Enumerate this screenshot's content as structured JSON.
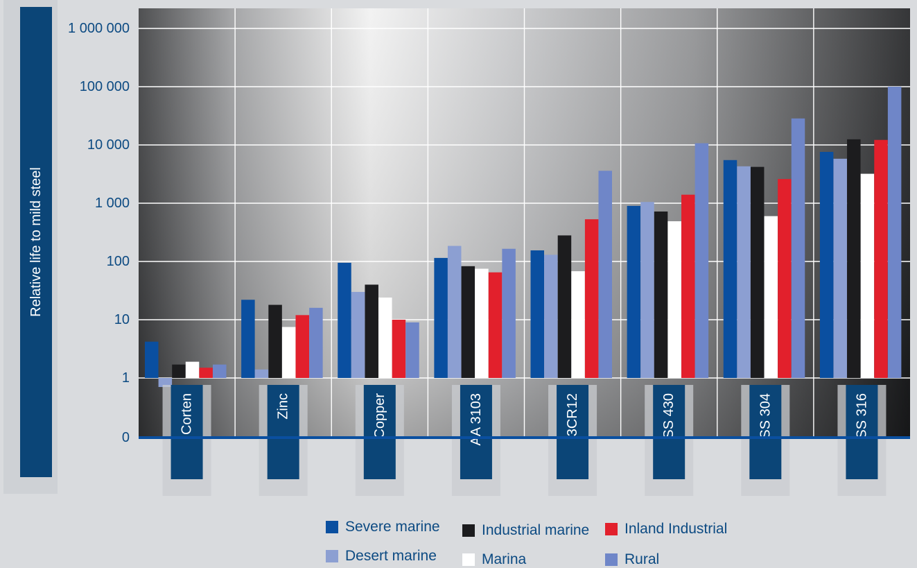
{
  "chart_data": {
    "type": "bar",
    "scale": "log",
    "ylabel": "Relative life to mild steel",
    "y_ticks": [
      {
        "value": 0,
        "label": "0"
      },
      {
        "value": 1,
        "label": "1"
      },
      {
        "value": 10,
        "label": "10"
      },
      {
        "value": 100,
        "label": "100"
      },
      {
        "value": 1000,
        "label": "1 000"
      },
      {
        "value": 10000,
        "label": "10 000"
      },
      {
        "value": 100000,
        "label": "100 000"
      },
      {
        "value": 1000000,
        "label": "1 000 000"
      }
    ],
    "grid": true,
    "legend_position": "bottom",
    "categories": [
      "Corten",
      "Zinc",
      "Copper",
      "AA 3103",
      "3CR12",
      "SS 430",
      "SS 304",
      "SS 316"
    ],
    "series": [
      {
        "name": "Severe marine",
        "color": "#0a4fa0",
        "values": [
          4.2,
          22,
          95,
          115,
          155,
          900,
          5500,
          7600
        ]
      },
      {
        "name": "Desert marine",
        "color": "#8c9fd2",
        "values": [
          0.7,
          1.4,
          30,
          185,
          130,
          1050,
          4300,
          5800
        ]
      },
      {
        "name": "Industrial marine",
        "color": "#1c1c1e",
        "values": [
          1.7,
          18,
          40,
          83,
          280,
          720,
          4200,
          12500
        ]
      },
      {
        "name": "Marina",
        "color": "#ffffff",
        "values": [
          1.9,
          7.5,
          24,
          75,
          68,
          490,
          600,
          3200
        ]
      },
      {
        "name": "Inland Industrial",
        "color": "#e2202c",
        "values": [
          1.5,
          12,
          10,
          65,
          530,
          1400,
          2600,
          12200
        ]
      },
      {
        "name": "Rural",
        "color": "#6f86c8",
        "values": [
          1.7,
          16,
          9,
          165,
          3600,
          10700,
          28500,
          100000
        ]
      }
    ]
  },
  "legend": {
    "items": [
      {
        "label": "Severe marine",
        "color": "#0a4fa0"
      },
      {
        "label": "Desert marine",
        "color": "#8c9fd2"
      },
      {
        "label": "Industrial marine",
        "color": "#1c1c1e"
      },
      {
        "label": "Marina",
        "color": "#ffffff"
      },
      {
        "label": "Inland Industrial",
        "color": "#e2202c"
      },
      {
        "label": "Rural",
        "color": "#6f86c8"
      }
    ]
  },
  "colors": {
    "axis_blue": "#0a4fa0",
    "label_box": "#0b4577",
    "text_blue": "#0c4a82"
  }
}
